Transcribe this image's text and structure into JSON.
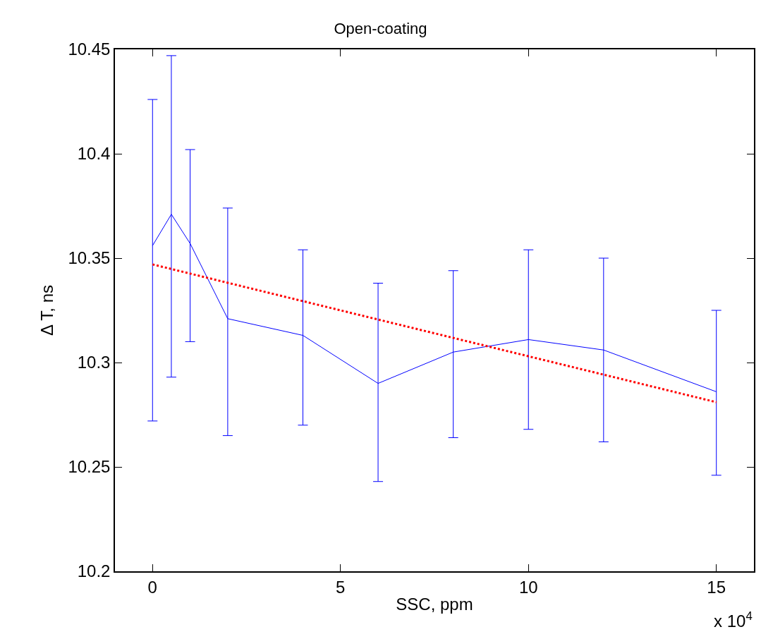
{
  "chart_data": {
    "type": "line",
    "title": "Open-coating",
    "xlabel": "SSC, ppm",
    "ylabel": "Δ T, ns",
    "annotations": [
      "x 10$^{4}$"
    ],
    "x": [
      0,
      0.5,
      1,
      2,
      4,
      6,
      8,
      10,
      12,
      15
    ],
    "series": [
      {
        "color": "#0000ff",
        "line_style": "solid",
        "values": [
          10.356,
          10.371,
          10.357,
          10.321,
          10.313,
          10.29,
          10.305,
          10.311,
          10.306,
          10.286
        ],
        "errors": [
          [
            10.272,
            10.426
          ],
          [
            10.293,
            10.447
          ],
          [
            10.31,
            10.402
          ],
          [
            10.265,
            10.374
          ],
          [
            10.27,
            10.354
          ],
          [
            10.243,
            10.338
          ],
          [
            10.264,
            10.344
          ],
          [
            10.268,
            10.354
          ],
          [
            10.262,
            10.35
          ],
          [
            10.246,
            10.325
          ]
        ]
      },
      {
        "color": "#ff0000",
        "line_style": "dotted",
        "x": [
          0,
          15
        ],
        "values": [
          10.347,
          10.281
        ]
      }
    ],
    "xlim": [
      -1,
      16
    ],
    "xticks": [
      0,
      5,
      10,
      15
    ],
    "ylim": [
      10.2,
      10.45
    ],
    "yticks": [
      10.2,
      10.25,
      10.3,
      10.35,
      10.4,
      10.45
    ],
    "marker": "none"
  }
}
